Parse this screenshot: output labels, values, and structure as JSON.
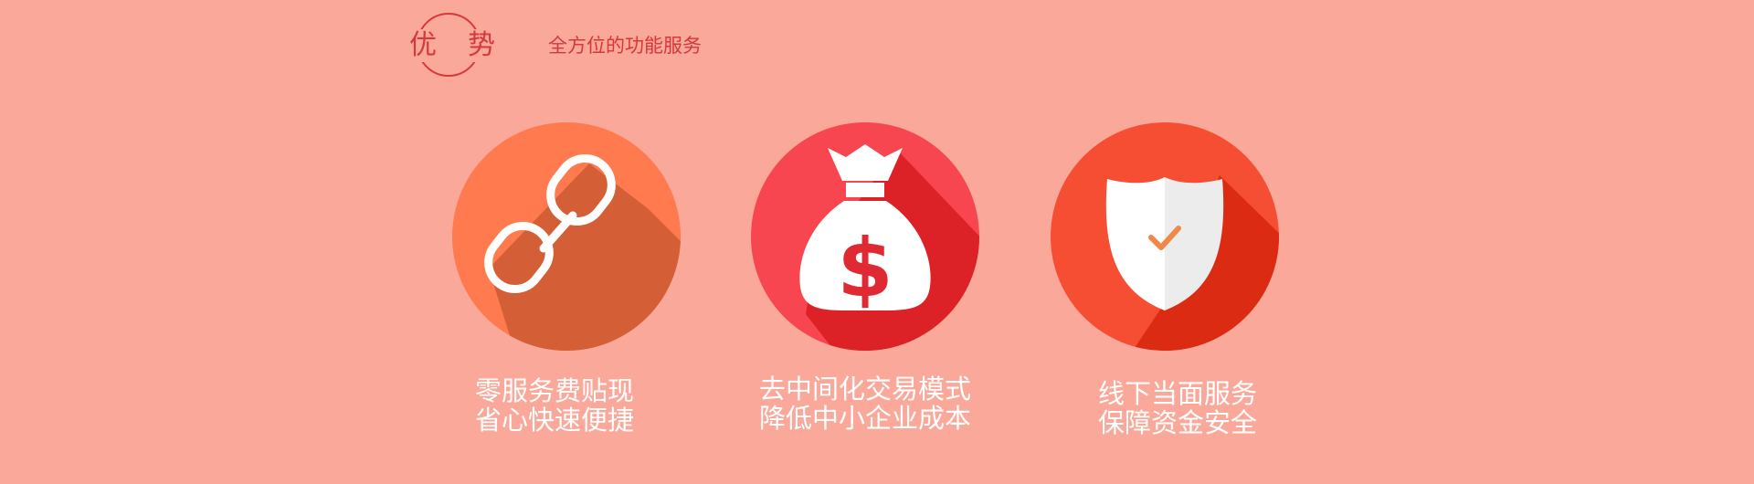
{
  "header": {
    "logo_char_1": "优",
    "logo_char_2": "势",
    "subtitle": "全方位的功能服务"
  },
  "features": [
    {
      "icon": "chain-link-icon",
      "line1": "零服务费贴现",
      "line2": "省心快速便捷",
      "circle_color": "#ff7a4e",
      "shadow_color": "#d45e36"
    },
    {
      "icon": "money-bag-icon",
      "line1": "去中间化交易模式",
      "line2": "降低中小企业成本",
      "circle_color": "#f7464f",
      "shadow_color": "#dd2227"
    },
    {
      "icon": "shield-check-icon",
      "line1": "线下当面服务",
      "line2": "保障资金安全",
      "circle_color": "#f64e33",
      "shadow_color": "#db2b12"
    }
  ],
  "colors": {
    "background": "#f9a89a",
    "accent": "#d6373a",
    "text_light": "#ffffff"
  }
}
